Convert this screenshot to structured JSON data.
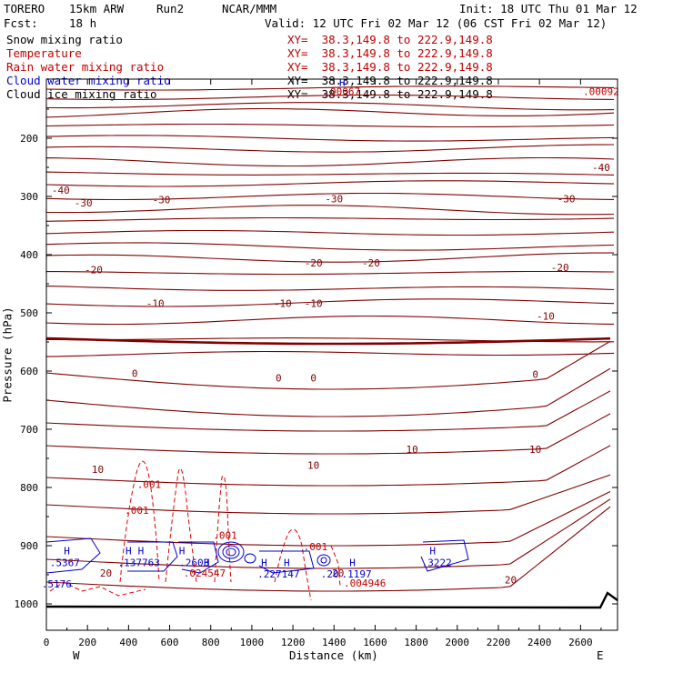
{
  "header": {
    "model": "TORERO",
    "resolution": "15km ARW",
    "run": "Run2",
    "center": "NCAR/MMM",
    "init": "Init: 18 UTC Thu 01 Mar 12",
    "fcst_label": "Fcst:",
    "fcst_value": "18 h",
    "valid": "Valid: 12 UTC Fri 02 Mar 12 (06 CST Fri 02 Mar 12)"
  },
  "fields": [
    {
      "name": "Snow mixing ratio",
      "color": "#000000",
      "xy": "XY=  38.3,149.8 to 222.9,149.8"
    },
    {
      "name": "Temperature",
      "color": "#c00000",
      "xy": "XY=  38.3,149.8 to 222.9,149.8"
    },
    {
      "name": "Rain water mixing ratio",
      "color": "#c00000",
      "xy": "XY=  38.3,149.8 to 222.9,149.8"
    },
    {
      "name": "Cloud water mixing ratio",
      "color": "#0000cc",
      "xy": "XY=  38.3,149.8 to 222.9,149.8"
    },
    {
      "name": "Cloud ice mixing ratio",
      "color": "#000000",
      "xy": "XY=  38.3,149.8 to 222.9,149.8"
    }
  ],
  "chart_data": {
    "type": "cross-section contour",
    "xlabel": "Distance (km)",
    "ylabel": "Pressure (hPa)",
    "xlim": [
      0,
      2780
    ],
    "ylim": [
      1000,
      100
    ],
    "x_ticks": [
      "0",
      "200",
      "400",
      "600",
      "800",
      "1000",
      "1200",
      "1400",
      "1600",
      "1800",
      "2000",
      "2200",
      "2400",
      "2600"
    ],
    "y_ticks": [
      "200",
      "300",
      "400",
      "500",
      "600",
      "700",
      "800",
      "900",
      "1000"
    ],
    "left_end_label": "W",
    "right_end_label": "E",
    "temperature_contour_labels": [
      {
        "text": "-40",
        "x": 70,
        "p": 295
      },
      {
        "text": "-40",
        "x": 2700,
        "p": 256
      },
      {
        "text": "-30",
        "x": 180,
        "p": 317
      },
      {
        "text": "-30",
        "x": 560,
        "p": 312
      },
      {
        "text": "-30",
        "x": 1400,
        "p": 310
      },
      {
        "text": "-30",
        "x": 2530,
        "p": 310
      },
      {
        "text": "-20",
        "x": 230,
        "p": 432
      },
      {
        "text": "-20",
        "x": 1300,
        "p": 420
      },
      {
        "text": "-20",
        "x": 1580,
        "p": 420
      },
      {
        "text": "-20",
        "x": 2500,
        "p": 428
      },
      {
        "text": "-10",
        "x": 530,
        "p": 490
      },
      {
        "text": "-10",
        "x": 1150,
        "p": 490
      },
      {
        "text": "-10",
        "x": 1300,
        "p": 490
      },
      {
        "text": "-10",
        "x": 2430,
        "p": 512
      },
      {
        "text": "0",
        "x": 430,
        "p": 610
      },
      {
        "text": "0",
        "x": 1130,
        "p": 618
      },
      {
        "text": "0",
        "x": 1300,
        "p": 618
      },
      {
        "text": "0",
        "x": 2380,
        "p": 612
      },
      {
        "text": "10",
        "x": 250,
        "p": 775
      },
      {
        "text": "10",
        "x": 1300,
        "p": 768
      },
      {
        "text": "10",
        "x": 1780,
        "p": 741
      },
      {
        "text": "10",
        "x": 2380,
        "p": 741
      },
      {
        "text": "20",
        "x": 290,
        "p": 953
      },
      {
        "text": "20",
        "x": 1420,
        "p": 953
      },
      {
        "text": "20",
        "x": 2260,
        "p": 965
      }
    ],
    "rain_labels": [
      {
        "text": ".001",
        "x": 500,
        "p": 801
      },
      {
        "text": ".001",
        "x": 440,
        "p": 845
      },
      {
        "text": ".001",
        "x": 870,
        "p": 888
      },
      {
        "text": ".001",
        "x": 1310,
        "p": 908
      },
      {
        "text": ".024547",
        "x": 770,
        "p": 953
      },
      {
        "text": ".004946",
        "x": 1550,
        "p": 970
      },
      {
        "text": ".00067",
        "x": 1440,
        "p": 126
      },
      {
        "text": ".00092",
        "x": 2700,
        "p": 126
      }
    ],
    "cloud_water_labels": [
      {
        "text": ".5367",
        "x": 90,
        "p": 935
      },
      {
        "text": ".137763",
        "x": 450,
        "p": 935
      },
      {
        "text": ".2603",
        "x": 720,
        "p": 935
      },
      {
        "text": ".227147",
        "x": 1130,
        "p": 955
      },
      {
        "text": ".1197",
        "x": 1510,
        "p": 955
      },
      {
        "text": ".3222",
        "x": 1900,
        "p": 935
      },
      {
        "text": ".5176",
        "x": 50,
        "p": 972
      },
      {
        "text": ".20",
        "x": 1380,
        "p": 955
      }
    ],
    "highs": [
      {
        "x": 100,
        "p": 915
      },
      {
        "x": 400,
        "p": 915
      },
      {
        "x": 460,
        "p": 915
      },
      {
        "x": 660,
        "p": 915
      },
      {
        "x": 780,
        "p": 935
      },
      {
        "x": 1060,
        "p": 935
      },
      {
        "x": 1170,
        "p": 935
      },
      {
        "x": 1490,
        "p": 935
      },
      {
        "x": 1880,
        "p": 915
      },
      {
        "x": 1440,
        "p": 110
      }
    ]
  }
}
